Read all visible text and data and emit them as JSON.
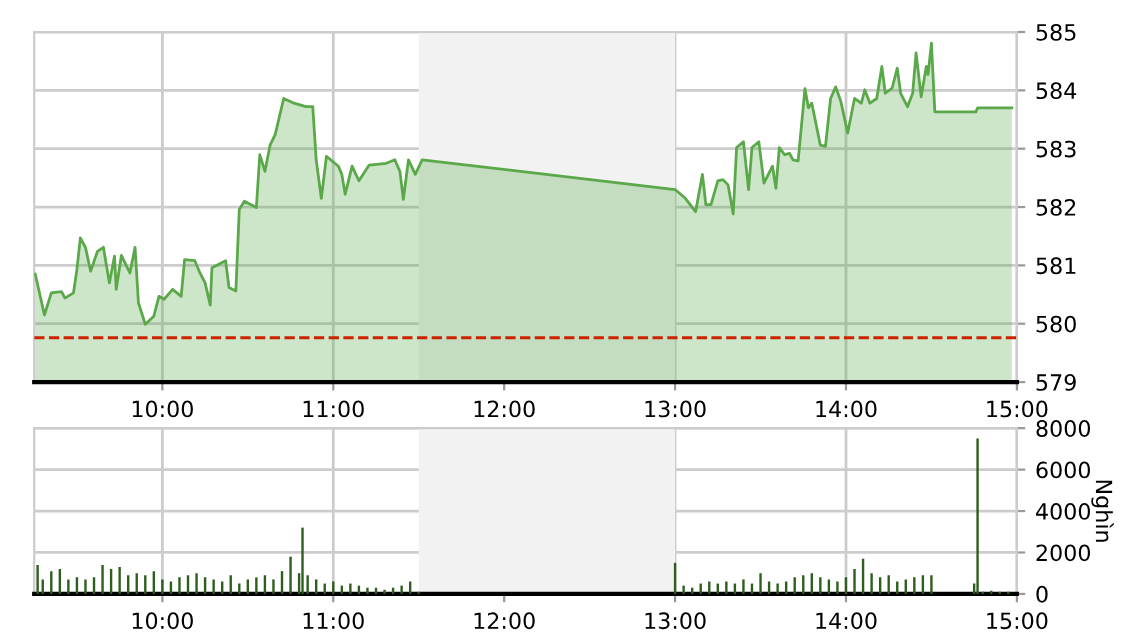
{
  "chart_data": [
    {
      "type": "area",
      "xlim": [
        9.25,
        15
      ],
      "xticks": [
        {
          "value": 10,
          "label": "10:00"
        },
        {
          "value": 11,
          "label": "11:00"
        },
        {
          "value": 12,
          "label": "12:00"
        },
        {
          "value": 13,
          "label": "13:00"
        },
        {
          "value": 14,
          "label": "14:00"
        },
        {
          "value": 15,
          "label": "15:00"
        }
      ],
      "ylim": [
        579,
        585
      ],
      "yticks": [
        579,
        580,
        581,
        582,
        583,
        584,
        585
      ],
      "grid": true,
      "bands": [
        {
          "axis": "x",
          "from": 11.5,
          "to": 13,
          "color": "#f2f2f2"
        }
      ],
      "ref_lines": [
        {
          "axis": "y",
          "value": 579.76,
          "color": "#cc2200",
          "line_style": "dashed"
        }
      ],
      "series": [
        {
          "color": "#5aa84a",
          "x": [
            9.256,
            9.31,
            9.35,
            9.41,
            9.43,
            9.48,
            9.5,
            9.52,
            9.55,
            9.58,
            9.62,
            9.655,
            9.69,
            9.72,
            9.73,
            9.76,
            9.81,
            9.84,
            9.86,
            9.9,
            9.95,
            9.98,
            10.01,
            10.06,
            10.11,
            10.13,
            10.19,
            10.22,
            10.25,
            10.28,
            10.29,
            10.37,
            10.39,
            10.43,
            10.45,
            10.48,
            10.55,
            10.57,
            10.6,
            10.63,
            10.66,
            10.71,
            10.77,
            10.84,
            10.88,
            10.9,
            10.93,
            10.96,
            11.03,
            11.05,
            11.07,
            11.11,
            11.15,
            11.21,
            11.31,
            11.36,
            11.39,
            11.41,
            11.44,
            11.48,
            11.52,
            13.0,
            13.06,
            13.12,
            13.16,
            13.18,
            13.21,
            13.25,
            13.28,
            13.31,
            13.34,
            13.36,
            13.4,
            13.43,
            13.45,
            13.49,
            13.52,
            13.57,
            13.59,
            13.61,
            13.64,
            13.67,
            13.69,
            13.72,
            13.76,
            13.78,
            13.8,
            13.85,
            13.88,
            13.91,
            13.94,
            13.97,
            14.01,
            14.05,
            14.09,
            14.11,
            14.14,
            14.18,
            14.21,
            14.23,
            14.27,
            14.3,
            14.32,
            14.36,
            14.39,
            14.41,
            14.44,
            14.47,
            14.48,
            14.5,
            14.52,
            14.76,
            14.77,
            14.97
          ],
          "values": [
            580.85,
            580.15,
            580.53,
            580.55,
            580.44,
            580.53,
            580.93,
            581.47,
            581.31,
            580.9,
            581.24,
            581.31,
            580.7,
            581.16,
            580.59,
            581.17,
            580.87,
            581.31,
            580.36,
            579.99,
            580.13,
            580.47,
            580.42,
            580.59,
            580.47,
            581.1,
            581.08,
            580.87,
            580.7,
            580.32,
            580.96,
            581.08,
            580.62,
            580.56,
            581.96,
            582.1,
            581.99,
            582.9,
            582.61,
            583.06,
            583.24,
            583.86,
            583.78,
            583.72,
            583.72,
            582.81,
            582.15,
            582.87,
            582.7,
            582.56,
            582.22,
            582.7,
            582.45,
            582.72,
            582.75,
            582.81,
            582.61,
            582.13,
            582.81,
            582.56,
            582.81,
            582.3,
            582.15,
            581.92,
            582.56,
            582.04,
            582.04,
            582.45,
            582.47,
            582.38,
            581.88,
            583.02,
            583.12,
            582.3,
            583.02,
            583.12,
            582.41,
            582.7,
            582.32,
            583.02,
            582.9,
            582.92,
            582.81,
            582.79,
            584.03,
            583.7,
            583.78,
            583.06,
            583.04,
            583.86,
            584.06,
            583.81,
            583.27,
            583.86,
            583.78,
            584.01,
            583.78,
            583.86,
            584.41,
            583.95,
            584.04,
            584.38,
            583.95,
            583.72,
            583.95,
            584.64,
            583.89,
            584.41,
            584.27,
            584.81,
            583.63,
            583.63,
            583.7,
            583.7
          ]
        }
      ]
    },
    {
      "type": "bar",
      "xlim": [
        9.25,
        15
      ],
      "xticks": [
        {
          "value": 10,
          "label": "10:00"
        },
        {
          "value": 11,
          "label": "11:00"
        },
        {
          "value": 12,
          "label": "12:00"
        },
        {
          "value": 13,
          "label": "13:00"
        },
        {
          "value": 14,
          "label": "14:00"
        },
        {
          "value": 15,
          "label": "15:00"
        }
      ],
      "ylim": [
        0,
        8000
      ],
      "yticks": [
        0,
        2000,
        4000,
        6000,
        8000
      ],
      "ylabel": "Nghìn",
      "grid": true,
      "bands": [
        {
          "axis": "x",
          "from": 11.5,
          "to": 13,
          "color": "#f2f2f2"
        }
      ],
      "series": [
        {
          "color": "#2e5e1e",
          "x": [
            9.27,
            9.3,
            9.35,
            9.4,
            9.45,
            9.5,
            9.55,
            9.6,
            9.65,
            9.7,
            9.75,
            9.8,
            9.85,
            9.9,
            9.95,
            10.0,
            10.05,
            10.1,
            10.15,
            10.2,
            10.25,
            10.3,
            10.35,
            10.4,
            10.45,
            10.5,
            10.55,
            10.6,
            10.65,
            10.7,
            10.75,
            10.8,
            10.82,
            10.85,
            10.9,
            10.95,
            11.0,
            11.05,
            11.1,
            11.15,
            11.2,
            11.25,
            11.3,
            11.35,
            11.4,
            11.45,
            11.5,
            13.0,
            13.05,
            13.1,
            13.15,
            13.2,
            13.25,
            13.3,
            13.35,
            13.4,
            13.45,
            13.5,
            13.55,
            13.6,
            13.65,
            13.7,
            13.75,
            13.8,
            13.85,
            13.9,
            13.95,
            14.0,
            14.05,
            14.1,
            14.15,
            14.2,
            14.25,
            14.3,
            14.35,
            14.4,
            14.45,
            14.5,
            14.75,
            14.77,
            14.8,
            14.85,
            14.9,
            14.95
          ],
          "values": [
            1400,
            700,
            1100,
            1200,
            700,
            800,
            700,
            800,
            1400,
            1200,
            1300,
            900,
            1000,
            900,
            1100,
            700,
            600,
            800,
            900,
            1000,
            800,
            700,
            600,
            900,
            500,
            700,
            800,
            900,
            700,
            1100,
            1800,
            1000,
            3200,
            900,
            700,
            500,
            600,
            400,
            500,
            400,
            300,
            300,
            200,
            300,
            400,
            600,
            100,
            1500,
            400,
            300,
            500,
            600,
            500,
            600,
            500,
            700,
            500,
            1000,
            600,
            500,
            600,
            800,
            900,
            1000,
            800,
            700,
            600,
            800,
            1200,
            1700,
            1000,
            800,
            900,
            600,
            700,
            800,
            900,
            900,
            500,
            7500,
            100,
            150,
            100,
            100
          ]
        }
      ]
    }
  ]
}
